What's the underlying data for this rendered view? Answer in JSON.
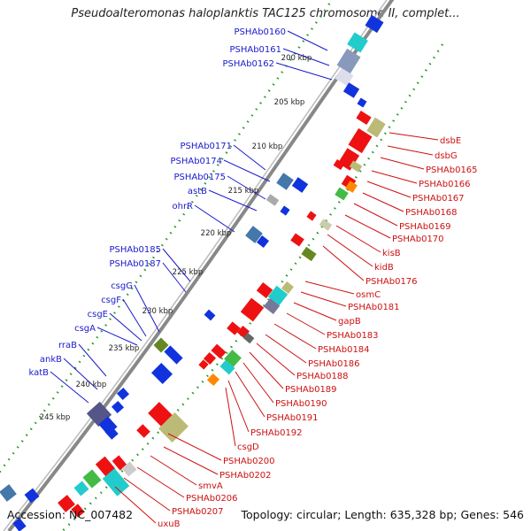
{
  "title": "Pseudoalteromonas haloplanktis TAC125 chromosome II, complet...",
  "footer": {
    "accession": "Accession: NC_007482",
    "summary": "Topology: circular; Length: 635,328 bp; Genes: 546"
  },
  "ticks": [
    "200 kbp",
    "205 kbp",
    "210 kbp",
    "215 kbp",
    "220 kbp",
    "225 kbp",
    "230 kbp",
    "235 kbp",
    "240 kbp",
    "245 kbp"
  ],
  "left_genes": [
    "PSHAb0160",
    "PSHAb0161",
    "PSHAb0162",
    "PSHAb0171",
    "PSHAb0174",
    "PSHAb0175",
    "astB",
    "ohrR",
    "PSHAb0185",
    "PSHAb0187",
    "csgG",
    "csgF",
    "csgE",
    "csgA",
    "rraB",
    "ankB",
    "katB"
  ],
  "right_genes": [
    "dsbE",
    "dsbG",
    "PSHAb0165",
    "PSHAb0166",
    "PSHAb0167",
    "PSHAb0168",
    "PSHAb0169",
    "PSHAb0170",
    "kisB",
    "kidB",
    "PSHAb0176",
    "osmC",
    "PSHAb0181",
    "gapB",
    "PSHAb0183",
    "PSHAb0184",
    "PSHAb0186",
    "PSHAb0188",
    "PSHAb0189",
    "PSHAb0190",
    "PSHAb0191",
    "PSHAb0192",
    "csgD",
    "PSHAb0200",
    "PSHAb0202",
    "smvA",
    "PSHAb0206",
    "PSHAb0207",
    "uxuB"
  ],
  "colors": {
    "left_label": "#1a1acc",
    "right_label": "#cc1111",
    "backbone": "#888888",
    "dots": "#229922"
  }
}
